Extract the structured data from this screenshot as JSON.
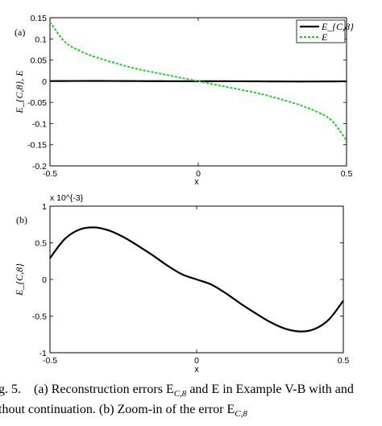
{
  "chart_data": [
    {
      "type": "line",
      "panel_label": "(a)",
      "xlabel": "x",
      "ylabel": "E_{C,8}, E",
      "xlim": [
        -0.5,
        0.5
      ],
      "ylim": [
        -0.2,
        0.15
      ],
      "xticks": [
        "-0.5",
        "0",
        "0.5"
      ],
      "yticks": [
        "0.15",
        "0.1",
        "0.05",
        "0",
        "-0.05",
        "-0.1",
        "-0.15",
        "-0.2"
      ],
      "legend_position": "top-right",
      "x": [
        -0.5,
        -0.45,
        -0.4,
        -0.35,
        -0.3,
        -0.25,
        -0.2,
        -0.15,
        -0.1,
        -0.05,
        0,
        0.05,
        0.1,
        0.15,
        0.2,
        0.25,
        0.3,
        0.35,
        0.4,
        0.45,
        0.5
      ],
      "series": [
        {
          "name": "E_{C,8}",
          "color": "#000000",
          "style": "solid",
          "values": [
            0.0003,
            0.0005,
            0.0006,
            0.0007,
            0.0006,
            0.0005,
            0.0003,
            0.0002,
            0.0001,
            0.0,
            0.0,
            0.0,
            -0.0001,
            -0.0002,
            -0.0003,
            -0.0005,
            -0.0006,
            -0.0007,
            -0.0006,
            -0.0005,
            -0.0003
          ]
        },
        {
          "name": "E",
          "color": "#22cc22",
          "style": "dashed",
          "values": [
            0.14,
            0.093,
            0.072,
            0.058,
            0.047,
            0.037,
            0.028,
            0.021,
            0.014,
            0.007,
            0.0,
            -0.007,
            -0.014,
            -0.021,
            -0.028,
            -0.037,
            -0.047,
            -0.058,
            -0.072,
            -0.093,
            -0.14
          ]
        }
      ]
    },
    {
      "type": "line",
      "panel_label": "(b)",
      "xlabel": "x",
      "ylabel": "E_{C,8}",
      "xlim": [
        -0.5,
        0.5
      ],
      "ylim": [
        -1,
        1
      ],
      "scale_note": "x 10^{-3}",
      "xticks": [
        "-0.5",
        "0",
        "0.5"
      ],
      "yticks": [
        "1",
        "0.5",
        "0",
        "-0.5",
        "-1"
      ],
      "x": [
        -0.5,
        -0.45,
        -0.4,
        -0.35,
        -0.3,
        -0.25,
        -0.2,
        -0.15,
        -0.1,
        -0.05,
        0,
        0.05,
        0.1,
        0.15,
        0.2,
        0.25,
        0.3,
        0.35,
        0.4,
        0.45,
        0.5
      ],
      "series": [
        {
          "name": "E_{C,8}",
          "color": "#000000",
          "style": "solid",
          "values": [
            0.29,
            0.55,
            0.68,
            0.71,
            0.67,
            0.58,
            0.46,
            0.33,
            0.19,
            0.07,
            0.0,
            -0.07,
            -0.19,
            -0.33,
            -0.46,
            -0.58,
            -0.67,
            -0.71,
            -0.68,
            -0.55,
            -0.29
          ]
        }
      ]
    }
  ],
  "caption": {
    "line1_prefix": "g. 5.",
    "line1_text": "(a) Reconstruction errors E",
    "line1_sub": "C,8",
    "line1_rest": "and E in Example V-B with and",
    "line2_text": "thout continuation. (b) Zoom-in of the error E",
    "line2_sub": "C,8"
  }
}
